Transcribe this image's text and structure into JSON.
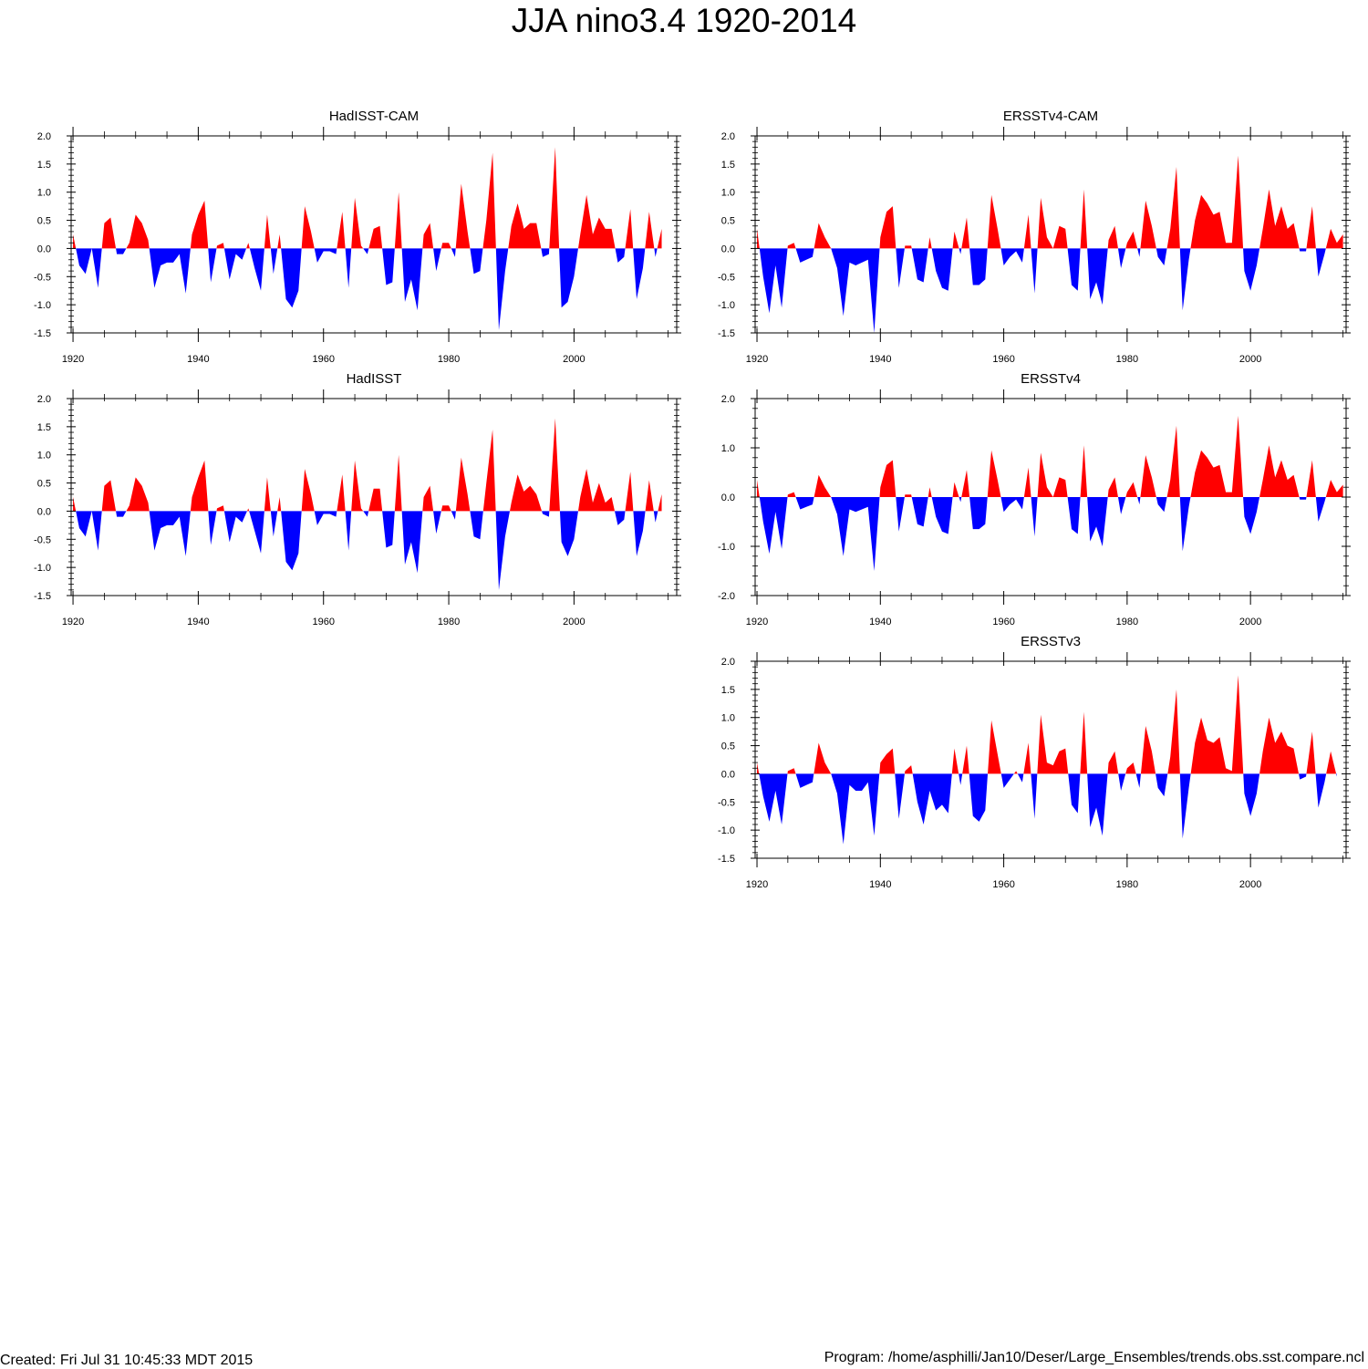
{
  "title": "JJA nino3.4 1920-2014",
  "footer": {
    "created": "Created: Fri Jul 31 10:45:33 MDT 2015",
    "program": "Program: /home/asphilli/Jan10/Deser/Large_Ensembles/trends.obs.sst.compare.ncl"
  },
  "colors": {
    "positive": "#ff0000",
    "negative": "#0000ff",
    "axis": "#000000"
  },
  "chart_data": [
    {
      "name": "hadisst-cam",
      "type": "area",
      "title": "HadISST-CAM",
      "xlim": [
        1919.7,
        2016.4
      ],
      "ylim": [
        -1.5,
        2.0
      ],
      "yticks": [
        -1.5,
        -1.0,
        -0.5,
        0.0,
        0.5,
        1.0,
        1.5,
        2.0
      ],
      "ytick_labels": [
        "-1.5",
        "-1.0",
        "-0.5",
        "0.0",
        "0.5",
        "1.0",
        "1.5",
        "2.0"
      ],
      "xticks": [
        1920,
        1940,
        1960,
        1980,
        2000
      ],
      "xtick_labels": [
        "1920",
        "1940",
        "1960",
        "1980",
        "2000"
      ],
      "x_start": 1920,
      "values": [
        0.25,
        -0.3,
        -0.45,
        0.0,
        -0.7,
        0.45,
        0.55,
        -0.1,
        -0.1,
        0.1,
        0.6,
        0.45,
        0.15,
        -0.7,
        -0.3,
        -0.25,
        -0.25,
        -0.1,
        -0.8,
        0.25,
        0.6,
        0.85,
        -0.6,
        0.05,
        0.1,
        -0.55,
        -0.1,
        -0.2,
        0.1,
        -0.35,
        -0.75,
        0.6,
        -0.45,
        0.25,
        -0.9,
        -1.05,
        -0.75,
        0.75,
        0.3,
        -0.25,
        -0.05,
        -0.05,
        -0.1,
        0.65,
        -0.7,
        0.9,
        0.05,
        -0.1,
        0.35,
        0.4,
        -0.65,
        -0.6,
        1.0,
        -0.95,
        -0.55,
        -1.1,
        0.25,
        0.45,
        -0.4,
        0.1,
        0.1,
        -0.15,
        1.15,
        0.3,
        -0.45,
        -0.4,
        0.5,
        1.7,
        -1.45,
        -0.4,
        0.4,
        0.8,
        0.35,
        0.45,
        0.45,
        -0.15,
        -0.1,
        1.8,
        -1.05,
        -0.95,
        -0.5,
        0.25,
        0.95,
        0.25,
        0.55,
        0.35,
        0.35,
        -0.25,
        -0.15,
        0.7,
        -0.9,
        -0.35,
        0.65,
        -0.15,
        0.35
      ]
    },
    {
      "name": "hadisst",
      "type": "area",
      "title": "HadISST",
      "xlim": [
        1919.7,
        2016.4
      ],
      "ylim": [
        -1.5,
        2.0
      ],
      "yticks": [
        -1.5,
        -1.0,
        -0.5,
        0.0,
        0.5,
        1.0,
        1.5,
        2.0
      ],
      "ytick_labels": [
        "-1.5",
        "-1.0",
        "-0.5",
        "0.0",
        "0.5",
        "1.0",
        "1.5",
        "2.0"
      ],
      "xticks": [
        1920,
        1940,
        1960,
        1980,
        2000
      ],
      "xtick_labels": [
        "1920",
        "1940",
        "1960",
        "1980",
        "2000"
      ],
      "x_start": 1920,
      "values": [
        0.25,
        -0.3,
        -0.45,
        0.0,
        -0.7,
        0.45,
        0.55,
        -0.1,
        -0.1,
        0.1,
        0.6,
        0.45,
        0.15,
        -0.7,
        -0.3,
        -0.25,
        -0.25,
        -0.1,
        -0.8,
        0.25,
        0.6,
        0.9,
        -0.6,
        0.05,
        0.1,
        -0.55,
        -0.1,
        -0.2,
        0.05,
        -0.35,
        -0.75,
        0.6,
        -0.45,
        0.25,
        -0.9,
        -1.05,
        -0.75,
        0.75,
        0.3,
        -0.25,
        -0.05,
        -0.05,
        -0.1,
        0.65,
        -0.7,
        0.9,
        0.05,
        -0.1,
        0.4,
        0.4,
        -0.65,
        -0.6,
        1.0,
        -0.95,
        -0.55,
        -1.1,
        0.25,
        0.45,
        -0.4,
        0.1,
        0.1,
        -0.15,
        0.95,
        0.3,
        -0.45,
        -0.5,
        0.5,
        1.45,
        -1.4,
        -0.45,
        0.15,
        0.65,
        0.35,
        0.45,
        0.3,
        -0.05,
        -0.1,
        1.65,
        -0.55,
        -0.8,
        -0.5,
        0.25,
        0.75,
        0.15,
        0.5,
        0.15,
        0.25,
        -0.25,
        -0.15,
        0.7,
        -0.8,
        -0.35,
        0.55,
        -0.2,
        0.3
      ]
    },
    {
      "name": "ersstv4-cam",
      "type": "area",
      "title": "ERSSTv4-CAM",
      "xlim": [
        1919.7,
        2015.5
      ],
      "ylim": [
        -1.5,
        2.0
      ],
      "yticks": [
        -1.5,
        -1.0,
        -0.5,
        0.0,
        0.5,
        1.0,
        1.5,
        2.0
      ],
      "ytick_labels": [
        "-1.5",
        "-1.0",
        "-0.5",
        "0.0",
        "0.5",
        "1.0",
        "1.5",
        "2.0"
      ],
      "xticks": [
        1920,
        1940,
        1960,
        1980,
        2000
      ],
      "xtick_labels": [
        "1920",
        "1940",
        "1960",
        "1980",
        "2000"
      ],
      "x_start": 1920,
      "values": [
        0.35,
        -0.5,
        -1.15,
        -0.3,
        -1.05,
        0.05,
        0.1,
        -0.25,
        -0.2,
        -0.15,
        0.45,
        0.2,
        0.0,
        -0.35,
        -1.2,
        -0.25,
        -0.3,
        -0.25,
        -0.2,
        -1.5,
        0.2,
        0.65,
        0.75,
        -0.7,
        0.05,
        0.05,
        -0.55,
        -0.6,
        0.2,
        -0.4,
        -0.7,
        -0.75,
        0.3,
        -0.1,
        0.55,
        -0.65,
        -0.65,
        -0.55,
        0.95,
        0.35,
        -0.3,
        -0.15,
        -0.05,
        -0.25,
        0.6,
        -0.8,
        0.9,
        0.2,
        0.0,
        0.4,
        0.35,
        -0.65,
        -0.75,
        1.05,
        -0.9,
        -0.6,
        -1.0,
        0.15,
        0.4,
        -0.35,
        0.1,
        0.3,
        -0.15,
        0.85,
        0.4,
        -0.15,
        -0.3,
        0.35,
        1.45,
        -1.1,
        -0.2,
        0.5,
        0.95,
        0.8,
        0.6,
        0.65,
        0.1,
        0.1,
        1.65,
        -0.4,
        -0.75,
        -0.3,
        0.35,
        1.05,
        0.4,
        0.75,
        0.35,
        0.45,
        -0.05,
        -0.05,
        0.75,
        -0.5,
        -0.1,
        0.35,
        0.1,
        0.25
      ]
    },
    {
      "name": "ersstv4",
      "type": "area",
      "title": "ERSSTv4",
      "xlim": [
        1919.7,
        2015.5
      ],
      "ylim": [
        -2.0,
        2.0
      ],
      "yticks": [
        -2.0,
        -1.0,
        0.0,
        1.0,
        2.0
      ],
      "ytick_labels": [
        "-2.0",
        "-1.0",
        "0.0",
        "1.0",
        "2.0"
      ],
      "xticks": [
        1920,
        1940,
        1960,
        1980,
        2000
      ],
      "xtick_labels": [
        "1920",
        "1940",
        "1960",
        "1980",
        "2000"
      ],
      "x_start": 1920,
      "values": [
        0.35,
        -0.5,
        -1.15,
        -0.3,
        -1.05,
        0.05,
        0.1,
        -0.25,
        -0.2,
        -0.15,
        0.45,
        0.2,
        0.0,
        -0.35,
        -1.2,
        -0.25,
        -0.3,
        -0.25,
        -0.2,
        -1.5,
        0.2,
        0.65,
        0.75,
        -0.7,
        0.05,
        0.05,
        -0.55,
        -0.6,
        0.2,
        -0.4,
        -0.7,
        -0.75,
        0.3,
        -0.1,
        0.55,
        -0.65,
        -0.65,
        -0.55,
        0.95,
        0.35,
        -0.3,
        -0.15,
        -0.05,
        -0.25,
        0.6,
        -0.8,
        0.9,
        0.2,
        0.0,
        0.4,
        0.35,
        -0.65,
        -0.75,
        1.05,
        -0.9,
        -0.6,
        -1.0,
        0.15,
        0.4,
        -0.35,
        0.1,
        0.3,
        -0.15,
        0.85,
        0.4,
        -0.15,
        -0.3,
        0.35,
        1.45,
        -1.1,
        -0.2,
        0.5,
        0.95,
        0.8,
        0.6,
        0.65,
        0.1,
        0.1,
        1.65,
        -0.4,
        -0.75,
        -0.3,
        0.35,
        1.05,
        0.4,
        0.75,
        0.35,
        0.45,
        -0.05,
        -0.05,
        0.75,
        -0.5,
        -0.1,
        0.35,
        0.1,
        0.25
      ]
    },
    {
      "name": "ersstv3",
      "type": "area",
      "title": "ERSSTv3",
      "xlim": [
        1919.7,
        2015.5
      ],
      "ylim": [
        -1.5,
        2.0
      ],
      "yticks": [
        -1.5,
        -1.0,
        -0.5,
        0.0,
        0.5,
        1.0,
        1.5,
        2.0
      ],
      "ytick_labels": [
        "-1.5",
        "-1.0",
        "-0.5",
        "0.0",
        "0.5",
        "1.0",
        "1.5",
        "2.0"
      ],
      "xticks": [
        1920,
        1940,
        1960,
        1980,
        2000
      ],
      "xtick_labels": [
        "1920",
        "1940",
        "1960",
        "1980",
        "2000"
      ],
      "x_start": 1920,
      "values": [
        0.2,
        -0.4,
        -0.85,
        -0.3,
        -0.9,
        0.05,
        0.1,
        -0.25,
        -0.2,
        -0.15,
        0.55,
        0.2,
        0.0,
        -0.35,
        -1.25,
        -0.2,
        -0.3,
        -0.3,
        -0.15,
        -1.1,
        0.2,
        0.35,
        0.45,
        -0.8,
        0.05,
        0.15,
        -0.5,
        -0.9,
        -0.3,
        -0.65,
        -0.55,
        -0.7,
        0.45,
        -0.2,
        0.5,
        -0.75,
        -0.85,
        -0.65,
        0.95,
        0.35,
        -0.25,
        -0.1,
        0.05,
        -0.15,
        0.55,
        -0.8,
        1.05,
        0.2,
        0.15,
        0.4,
        0.45,
        -0.55,
        -0.7,
        1.1,
        -0.95,
        -0.6,
        -1.1,
        0.2,
        0.4,
        -0.3,
        0.1,
        0.2,
        -0.25,
        0.85,
        0.4,
        -0.25,
        -0.4,
        0.3,
        1.5,
        -1.15,
        -0.25,
        0.55,
        1.0,
        0.6,
        0.55,
        0.65,
        0.1,
        0.05,
        1.75,
        -0.35,
        -0.75,
        -0.35,
        0.4,
        1.0,
        0.55,
        0.75,
        0.5,
        0.45,
        -0.1,
        -0.05,
        0.75,
        -0.6,
        -0.15,
        0.4,
        -0.05
      ]
    }
  ]
}
